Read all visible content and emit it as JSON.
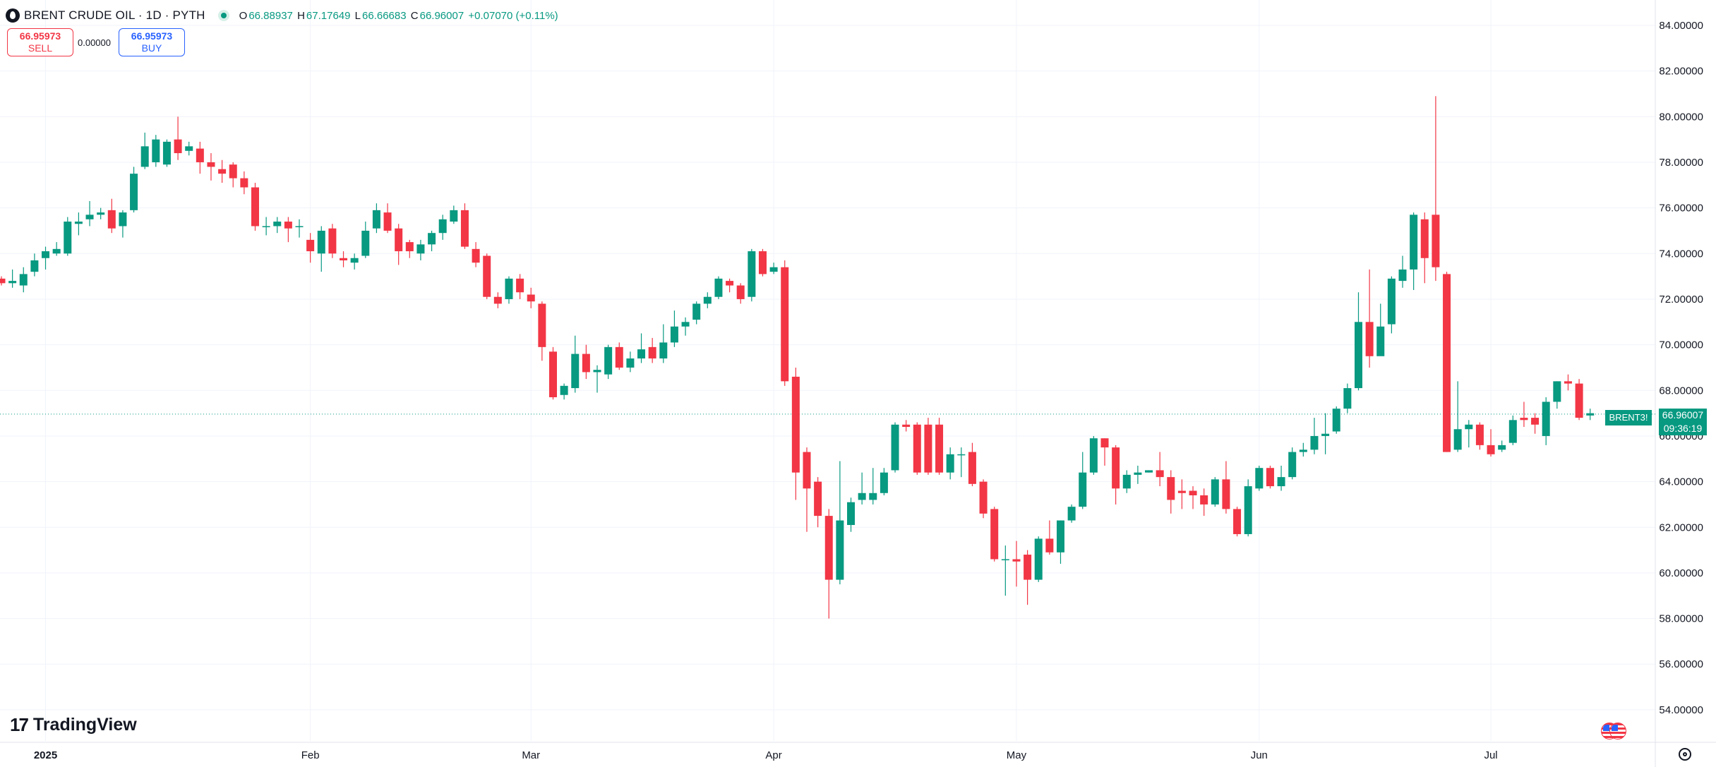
{
  "header": {
    "title": "BRENT CRUDE OIL · 1D · PYTH",
    "open_label": "O",
    "open": "66.88937",
    "high_label": "H",
    "high": "67.17649",
    "low_label": "L",
    "low": "66.66683",
    "close_label": "C",
    "close": "66.96007",
    "change": "+0.07070 (+0.11%)"
  },
  "trade": {
    "sell_price": "66.95973",
    "sell_label": "SELL",
    "spread": "0.00000",
    "buy_price": "66.95973",
    "buy_label": "BUY"
  },
  "price_tag": {
    "symbol": "BRENT3!",
    "price": "66.96007",
    "countdown": "09:36:19"
  },
  "branding": {
    "logo_text": "TradingView"
  },
  "colors": {
    "up": "#089981",
    "down": "#f23645",
    "grid": "#f0f3fa",
    "text": "#131722"
  },
  "chart_data": {
    "type": "candlestick",
    "title": "BRENT CRUDE OIL · 1D · PYTH",
    "ylim": [
      53,
      85
    ],
    "y_ticks": [
      "84.00000",
      "82.00000",
      "80.00000",
      "78.00000",
      "76.00000",
      "74.00000",
      "72.00000",
      "70.00000",
      "68.00000",
      "66.00000",
      "64.00000",
      "62.00000",
      "60.00000",
      "58.00000",
      "56.00000",
      "54.00000"
    ],
    "x_labels": [
      {
        "label": "2025",
        "index": 4,
        "bold": true
      },
      {
        "label": "Feb",
        "index": 28
      },
      {
        "label": "Mar",
        "index": 48
      },
      {
        "label": "Apr",
        "index": 70
      },
      {
        "label": "May",
        "index": 92
      },
      {
        "label": "Jun",
        "index": 114
      },
      {
        "label": "Jul",
        "index": 135
      }
    ],
    "last_price": 66.96007,
    "candles": [
      [
        72.9,
        72.7,
        73.0,
        72.6
      ],
      [
        72.7,
        72.8,
        73.3,
        72.5
      ],
      [
        72.6,
        73.1,
        73.4,
        72.3
      ],
      [
        73.2,
        73.7,
        74.0,
        73.0
      ],
      [
        73.8,
        74.1,
        74.3,
        73.3
      ],
      [
        74.0,
        74.2,
        74.5,
        73.9
      ],
      [
        74.0,
        75.4,
        75.6,
        73.9
      ],
      [
        75.3,
        75.4,
        75.8,
        74.8
      ],
      [
        75.5,
        75.7,
        76.3,
        75.2
      ],
      [
        75.7,
        75.8,
        76.0,
        75.5
      ],
      [
        75.9,
        75.1,
        76.4,
        74.9
      ],
      [
        75.2,
        75.8,
        75.9,
        74.7
      ],
      [
        75.9,
        77.5,
        77.8,
        75.8
      ],
      [
        77.8,
        78.7,
        79.3,
        77.7
      ],
      [
        78.0,
        79.0,
        79.2,
        77.8
      ],
      [
        77.9,
        78.9,
        79.0,
        77.8
      ],
      [
        79.0,
        78.4,
        80.0,
        78.1
      ],
      [
        78.5,
        78.7,
        78.9,
        78.3
      ],
      [
        78.6,
        78.0,
        78.9,
        77.5
      ],
      [
        78.0,
        77.8,
        78.4,
        77.2
      ],
      [
        77.7,
        77.5,
        78.1,
        77.1
      ],
      [
        77.9,
        77.3,
        78.0,
        76.9
      ],
      [
        77.3,
        76.9,
        77.6,
        76.6
      ],
      [
        76.9,
        75.2,
        77.1,
        75.0
      ],
      [
        75.2,
        75.2,
        75.6,
        74.8
      ],
      [
        75.2,
        75.4,
        75.6,
        74.9
      ],
      [
        75.4,
        75.1,
        75.6,
        74.5
      ],
      [
        75.2,
        75.2,
        75.5,
        74.7
      ],
      [
        74.6,
        74.1,
        74.9,
        73.6
      ],
      [
        74.0,
        75.0,
        75.2,
        73.2
      ],
      [
        75.1,
        74.0,
        75.3,
        73.8
      ],
      [
        73.8,
        73.7,
        74.1,
        73.4
      ],
      [
        73.6,
        73.8,
        74.0,
        73.3
      ],
      [
        73.9,
        75.0,
        75.4,
        73.8
      ],
      [
        75.1,
        75.9,
        76.2,
        74.9
      ],
      [
        75.8,
        75.0,
        76.2,
        74.9
      ],
      [
        75.1,
        74.1,
        75.3,
        73.5
      ],
      [
        74.5,
        74.1,
        74.6,
        73.8
      ],
      [
        74.0,
        74.4,
        74.6,
        73.7
      ],
      [
        74.4,
        74.9,
        75.0,
        74.1
      ],
      [
        74.9,
        75.5,
        75.7,
        74.6
      ],
      [
        75.4,
        75.9,
        76.1,
        75.3
      ],
      [
        75.9,
        74.3,
        76.2,
        74.2
      ],
      [
        74.2,
        73.6,
        74.5,
        73.4
      ],
      [
        73.9,
        72.1,
        74.0,
        72.0
      ],
      [
        72.1,
        71.8,
        72.3,
        71.6
      ],
      [
        72.0,
        72.9,
        73.0,
        71.8
      ],
      [
        72.9,
        72.3,
        73.1,
        72.0
      ],
      [
        72.2,
        71.9,
        72.5,
        71.6
      ],
      [
        71.8,
        69.9,
        71.9,
        69.3
      ],
      [
        69.7,
        67.7,
        69.9,
        67.6
      ],
      [
        67.8,
        68.2,
        68.3,
        67.6
      ],
      [
        68.1,
        69.6,
        70.4,
        67.9
      ],
      [
        69.6,
        68.8,
        70.0,
        68.5
      ],
      [
        68.8,
        68.9,
        69.1,
        67.9
      ],
      [
        68.7,
        69.9,
        70.0,
        68.5
      ],
      [
        69.9,
        69.0,
        70.1,
        68.9
      ],
      [
        69.0,
        69.4,
        69.7,
        68.8
      ],
      [
        69.4,
        69.8,
        70.5,
        69.2
      ],
      [
        69.9,
        69.4,
        70.3,
        69.2
      ],
      [
        69.4,
        70.1,
        70.9,
        69.2
      ],
      [
        70.1,
        70.8,
        71.5,
        69.9
      ],
      [
        70.8,
        71.0,
        71.2,
        70.4
      ],
      [
        71.1,
        71.8,
        71.9,
        70.9
      ],
      [
        71.8,
        72.1,
        72.3,
        71.6
      ],
      [
        72.1,
        72.9,
        73.0,
        72.0
      ],
      [
        72.8,
        72.6,
        72.9,
        72.3
      ],
      [
        72.6,
        72.0,
        72.7,
        71.8
      ],
      [
        72.1,
        74.1,
        74.2,
        71.9
      ],
      [
        74.1,
        73.1,
        74.2,
        73.0
      ],
      [
        73.2,
        73.4,
        73.6,
        73.1
      ],
      [
        73.4,
        68.4,
        73.7,
        68.2
      ],
      [
        68.6,
        64.4,
        69.0,
        63.2
      ],
      [
        65.3,
        63.7,
        65.5,
        61.8
      ],
      [
        64.0,
        62.5,
        64.2,
        62.0
      ],
      [
        62.5,
        59.7,
        62.8,
        58.0
      ],
      [
        59.7,
        62.3,
        64.9,
        59.5
      ],
      [
        62.1,
        63.1,
        63.3,
        61.8
      ],
      [
        63.2,
        63.5,
        64.4,
        63.0
      ],
      [
        63.2,
        63.5,
        64.6,
        63.0
      ],
      [
        63.5,
        64.4,
        64.6,
        63.4
      ],
      [
        64.5,
        66.5,
        66.6,
        64.4
      ],
      [
        66.5,
        66.4,
        66.7,
        66.2
      ],
      [
        66.5,
        64.4,
        66.6,
        64.3
      ],
      [
        66.5,
        64.4,
        66.8,
        64.3
      ],
      [
        66.5,
        64.4,
        66.8,
        64.3
      ],
      [
        64.4,
        65.2,
        65.5,
        64.1
      ],
      [
        65.2,
        65.2,
        65.5,
        64.2
      ],
      [
        65.3,
        63.9,
        65.7,
        63.8
      ],
      [
        64.0,
        62.6,
        64.1,
        62.4
      ],
      [
        62.8,
        60.6,
        62.9,
        60.5
      ],
      [
        60.6,
        60.6,
        61.2,
        59.0
      ],
      [
        60.6,
        60.5,
        61.4,
        59.4
      ],
      [
        60.8,
        59.7,
        61.0,
        58.6
      ],
      [
        59.7,
        61.5,
        61.6,
        59.6
      ],
      [
        61.5,
        60.9,
        62.3,
        60.8
      ],
      [
        60.9,
        62.3,
        62.3,
        60.4
      ],
      [
        62.3,
        62.9,
        63.0,
        62.2
      ],
      [
        62.9,
        64.4,
        65.3,
        62.8
      ],
      [
        64.4,
        65.9,
        66.0,
        64.3
      ],
      [
        65.9,
        65.5,
        65.9,
        64.7
      ],
      [
        65.5,
        63.7,
        65.6,
        63.0
      ],
      [
        63.7,
        64.3,
        64.5,
        63.5
      ],
      [
        64.3,
        64.4,
        64.7,
        63.9
      ],
      [
        64.4,
        64.5,
        64.5,
        64.4
      ],
      [
        64.5,
        64.2,
        65.3,
        63.8
      ],
      [
        64.2,
        63.2,
        64.5,
        62.6
      ],
      [
        63.6,
        63.5,
        64.1,
        62.8
      ],
      [
        63.6,
        63.4,
        63.8,
        62.8
      ],
      [
        63.4,
        63.0,
        63.7,
        62.5
      ],
      [
        63.0,
        64.1,
        64.2,
        62.9
      ],
      [
        64.1,
        62.8,
        64.9,
        62.6
      ],
      [
        62.8,
        61.7,
        62.9,
        61.6
      ],
      [
        61.7,
        63.8,
        64.1,
        61.6
      ],
      [
        63.7,
        64.6,
        64.7,
        63.6
      ],
      [
        64.6,
        63.8,
        64.7,
        63.7
      ],
      [
        63.8,
        64.2,
        64.7,
        63.6
      ],
      [
        64.2,
        65.3,
        65.5,
        64.1
      ],
      [
        65.3,
        65.4,
        65.7,
        65.1
      ],
      [
        65.4,
        66.0,
        66.8,
        65.2
      ],
      [
        66.0,
        66.1,
        67.0,
        65.2
      ],
      [
        66.2,
        67.2,
        67.3,
        66.1
      ],
      [
        67.2,
        68.1,
        68.3,
        67.0
      ],
      [
        68.1,
        71.0,
        72.3,
        68.0
      ],
      [
        71.0,
        69.5,
        73.3,
        69.0
      ],
      [
        69.5,
        70.8,
        71.8,
        70.4
      ],
      [
        70.9,
        72.9,
        73.0,
        70.5
      ],
      [
        72.8,
        73.3,
        73.9,
        72.5
      ],
      [
        73.3,
        75.7,
        75.8,
        72.4
      ],
      [
        75.5,
        73.8,
        75.8,
        72.7
      ],
      [
        75.7,
        73.4,
        80.9,
        72.8
      ],
      [
        73.1,
        65.3,
        73.2,
        65.3
      ],
      [
        65.4,
        66.3,
        68.4,
        65.3
      ],
      [
        66.3,
        66.5,
        66.7,
        65.5
      ],
      [
        66.5,
        65.6,
        66.6,
        65.4
      ],
      [
        65.6,
        65.2,
        66.3,
        65.1
      ],
      [
        65.4,
        65.6,
        65.8,
        65.3
      ],
      [
        65.7,
        66.7,
        66.9,
        65.6
      ],
      [
        66.8,
        66.7,
        67.5,
        66.4
      ],
      [
        66.8,
        66.5,
        67.0,
        66.1
      ],
      [
        66.0,
        67.5,
        67.7,
        65.6
      ],
      [
        67.5,
        68.4,
        68.4,
        67.2
      ],
      [
        68.4,
        68.3,
        68.7,
        68.0
      ],
      [
        68.3,
        66.8,
        68.5,
        66.7
      ],
      [
        66.9,
        67.0,
        67.2,
        66.7
      ]
    ]
  }
}
